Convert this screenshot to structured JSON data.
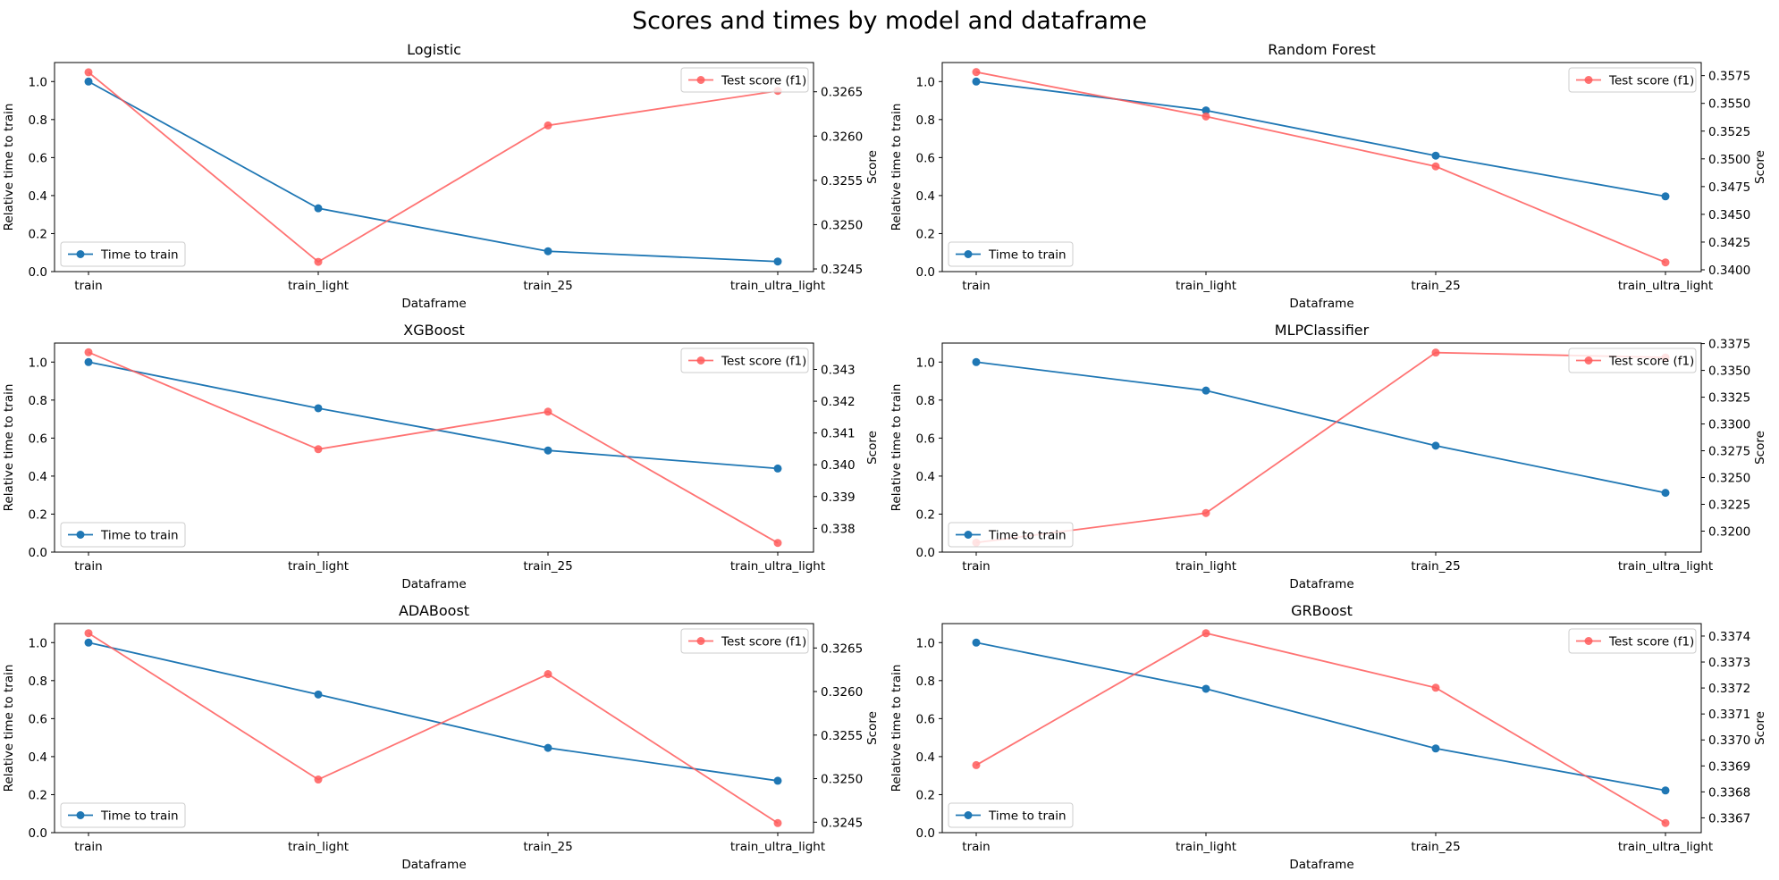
{
  "figure_title": "Scores and times by model and dataframe",
  "colors": {
    "time": "#1f77b4",
    "score": "#ff5b5b",
    "axis": "#000000"
  },
  "chart_data": [
    {
      "type": "line",
      "title": "Logistic",
      "categories": [
        "train",
        "train_light",
        "train_25",
        "train_ultra_light"
      ],
      "xlabel": "Dataframe",
      "ylabel": "Relative time to train",
      "y2label": "Score",
      "ylim": [
        0,
        1.1
      ],
      "yticks": [
        0.0,
        0.2,
        0.4,
        0.6,
        0.8,
        1.0
      ],
      "y2lim": [
        0.32447,
        0.32683
      ],
      "y2ticks": [
        0.3245,
        0.325,
        0.3255,
        0.326,
        0.3265
      ],
      "y2decimals": 4,
      "series": [
        {
          "name": "Time to train",
          "axis": "left",
          "values": [
            1.0,
            0.333,
            0.107,
            0.053
          ]
        },
        {
          "name": "Test score (f1)",
          "axis": "right",
          "values": [
            0.32672,
            0.32458,
            0.32612,
            0.32651
          ]
        }
      ],
      "legend": {
        "time": "lower left",
        "score": "upper right"
      }
    },
    {
      "type": "line",
      "title": "Random Forest",
      "categories": [
        "train",
        "train_light",
        "train_25",
        "train_ultra_light"
      ],
      "xlabel": "Dataframe",
      "ylabel": "Relative time to train",
      "y2label": "Score",
      "ylim": [
        0,
        1.1
      ],
      "yticks": [
        0.0,
        0.2,
        0.4,
        0.6,
        0.8,
        1.0
      ],
      "y2lim": [
        0.33984,
        0.35868
      ],
      "y2ticks": [
        0.34,
        0.3425,
        0.345,
        0.3475,
        0.35,
        0.3525,
        0.355,
        0.3575
      ],
      "y2decimals": 4,
      "series": [
        {
          "name": "Time to train",
          "axis": "left",
          "values": [
            1.0,
            0.848,
            0.61,
            0.396
          ]
        },
        {
          "name": "Test score (f1)",
          "axis": "right",
          "values": [
            0.35782,
            0.35382,
            0.34932,
            0.34067
          ]
        }
      ],
      "legend": {
        "time": "lower left",
        "score": "upper right"
      }
    },
    {
      "type": "line",
      "title": "XGBoost",
      "categories": [
        "train",
        "train_light",
        "train_25",
        "train_ultra_light"
      ],
      "xlabel": "Dataframe",
      "ylabel": "Relative time to train",
      "y2label": "Score",
      "ylim": [
        0,
        1.1
      ],
      "yticks": [
        0.0,
        0.2,
        0.4,
        0.6,
        0.8,
        1.0
      ],
      "y2lim": [
        0.33725,
        0.34383
      ],
      "y2ticks": [
        0.338,
        0.339,
        0.34,
        0.341,
        0.342,
        0.343
      ],
      "y2decimals": 3,
      "series": [
        {
          "name": "Time to train",
          "axis": "left",
          "values": [
            1.0,
            0.757,
            0.535,
            0.44
          ]
        },
        {
          "name": "Test score (f1)",
          "axis": "right",
          "values": [
            0.34354,
            0.34049,
            0.34167,
            0.33754
          ]
        }
      ],
      "legend": {
        "time": "lower left",
        "score": "upper right"
      }
    },
    {
      "type": "line",
      "title": "MLPClassifier",
      "categories": [
        "train",
        "train_light",
        "train_25",
        "train_ultra_light"
      ],
      "xlabel": "Dataframe",
      "ylabel": "Relative time to train",
      "y2label": "Score",
      "ylim": [
        0,
        1.1
      ],
      "yticks": [
        0.0,
        0.2,
        0.4,
        0.6,
        0.8,
        1.0
      ],
      "y2lim": [
        0.31804,
        0.33755
      ],
      "y2ticks": [
        0.32,
        0.3225,
        0.325,
        0.3275,
        0.33,
        0.3325,
        0.335,
        0.3375
      ],
      "y2decimals": 4,
      "series": [
        {
          "name": "Time to train",
          "axis": "left",
          "values": [
            1.0,
            0.85,
            0.56,
            0.312
          ]
        },
        {
          "name": "Test score (f1)",
          "axis": "right",
          "values": [
            0.31893,
            0.32169,
            0.33666,
            0.33621
          ]
        }
      ],
      "legend": {
        "time": "lower left",
        "score": "upper right"
      }
    },
    {
      "type": "line",
      "title": "ADABoost",
      "categories": [
        "train",
        "train_light",
        "train_25",
        "train_ultra_light"
      ],
      "xlabel": "Dataframe",
      "ylabel": "Relative time to train",
      "y2label": "Score",
      "ylim": [
        0,
        1.1
      ],
      "yticks": [
        0.0,
        0.2,
        0.4,
        0.6,
        0.8,
        1.0
      ],
      "y2lim": [
        0.32438,
        0.32678
      ],
      "y2ticks": [
        0.3245,
        0.325,
        0.3255,
        0.326,
        0.3265
      ],
      "y2decimals": 4,
      "series": [
        {
          "name": "Time to train",
          "axis": "left",
          "values": [
            1.0,
            0.727,
            0.446,
            0.273
          ]
        },
        {
          "name": "Test score (f1)",
          "axis": "right",
          "values": [
            0.32667,
            0.32499,
            0.3262,
            0.32449
          ]
        }
      ],
      "legend": {
        "time": "lower left",
        "score": "upper right"
      }
    },
    {
      "type": "line",
      "title": "GRBoost",
      "categories": [
        "train",
        "train_light",
        "train_25",
        "train_ultra_light"
      ],
      "xlabel": "Dataframe",
      "ylabel": "Relative time to train",
      "y2label": "Score",
      "ylim": [
        0,
        1.1
      ],
      "yticks": [
        0.0,
        0.2,
        0.4,
        0.6,
        0.8,
        1.0
      ],
      "y2lim": [
        0.336643,
        0.337448
      ],
      "y2ticks": [
        0.3367,
        0.3368,
        0.3369,
        0.337,
        0.3371,
        0.3372,
        0.3373,
        0.3374
      ],
      "y2decimals": 4,
      "series": [
        {
          "name": "Time to train",
          "axis": "left",
          "values": [
            1.0,
            0.757,
            0.443,
            0.222
          ]
        },
        {
          "name": "Test score (f1)",
          "axis": "right",
          "values": [
            0.336903,
            0.337411,
            0.337201,
            0.33668
          ]
        }
      ],
      "legend": {
        "time": "lower left",
        "score": "upper right"
      }
    }
  ]
}
